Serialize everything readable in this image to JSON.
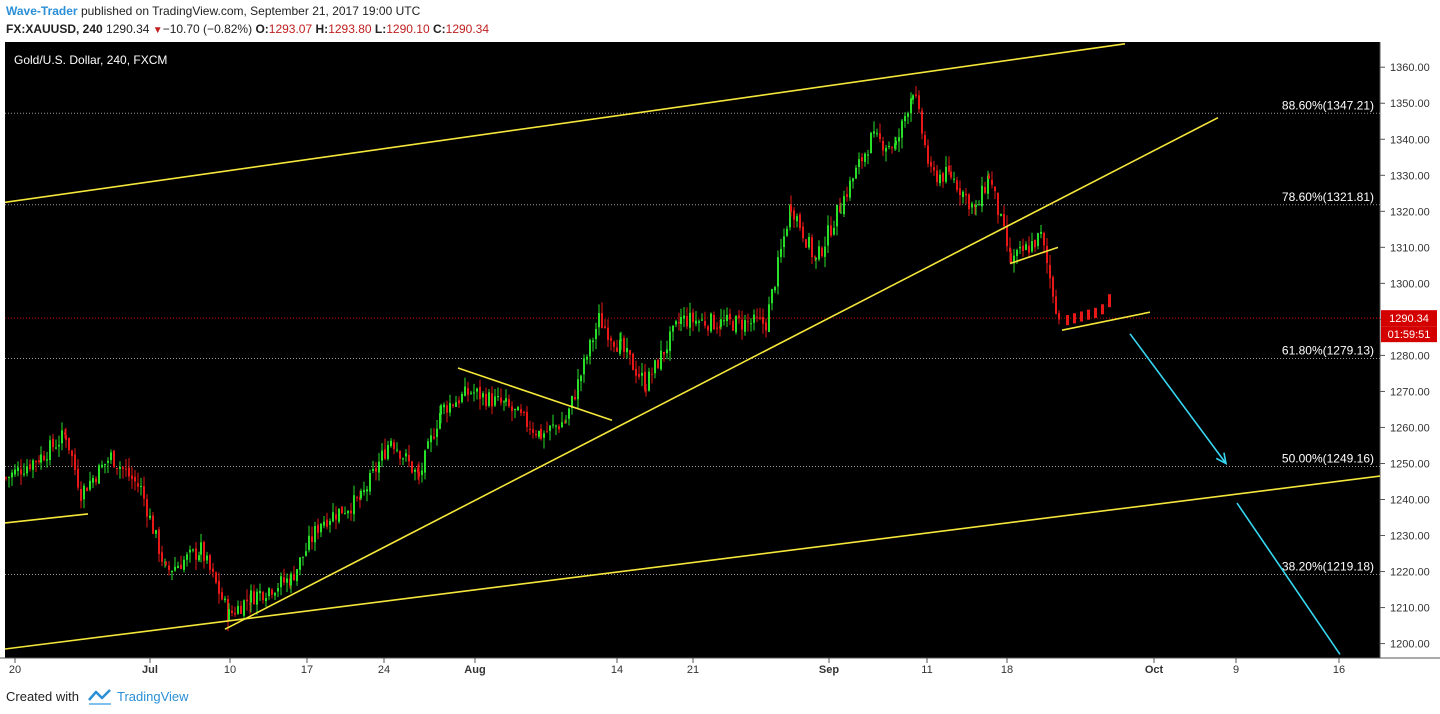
{
  "header": {
    "author": "Wave-Trader",
    "published_text": "published on TradingView.com, September 21, 2017 19:00 UTC",
    "symbol": "FX:XAUUSD, 240",
    "last": "1290.34",
    "change": "−10.70 (−0.82%)",
    "open_label": "O:",
    "open": "1293.07",
    "high_label": "H:",
    "high": "1293.80",
    "low_label": "L:",
    "low": "1290.10",
    "close_label": "C:",
    "close": "1290.34"
  },
  "chart_data": {
    "type": "candlestick",
    "title": "Gold/U.S. Dollar, 240, FXCM",
    "ylim": [
      1196,
      1367
    ],
    "y_ticks": [
      "1360.00",
      "1350.00",
      "1340.00",
      "1330.00",
      "1320.00",
      "1310.00",
      "1300.00",
      "1290.00",
      "1280.00",
      "1270.00",
      "1260.00",
      "1250.00",
      "1240.00",
      "1230.00",
      "1220.00",
      "1210.00",
      "1200.00"
    ],
    "x_ticks": [
      "20",
      "Jul",
      "10",
      "17",
      "24",
      "Aug",
      "14",
      "21",
      "Sep",
      "11",
      "18",
      "Oct",
      "9",
      "16"
    ],
    "last_price_label": "1290.34",
    "countdown_label": "01:59:51",
    "fib_levels": [
      {
        "label": "88.60%(1347.21)",
        "value": 1347.21
      },
      {
        "label": "78.60%(1321.81)",
        "value": 1321.81
      },
      {
        "label": "61.80%(1279.13)",
        "value": 1279.13
      },
      {
        "label": "50.00%(1249.16)",
        "value": 1249.16
      },
      {
        "label": "38.20%(1219.18)",
        "value": 1219.18
      }
    ],
    "anchors": [
      {
        "x": 5,
        "y": 1246
      },
      {
        "x": 40,
        "y": 1252
      },
      {
        "x": 65,
        "y": 1258
      },
      {
        "x": 80,
        "y": 1242
      },
      {
        "x": 110,
        "y": 1252
      },
      {
        "x": 140,
        "y": 1243
      },
      {
        "x": 165,
        "y": 1220
      },
      {
        "x": 200,
        "y": 1226
      },
      {
        "x": 228,
        "y": 1208
      },
      {
        "x": 250,
        "y": 1213
      },
      {
        "x": 290,
        "y": 1218
      },
      {
        "x": 320,
        "y": 1234
      },
      {
        "x": 360,
        "y": 1240
      },
      {
        "x": 390,
        "y": 1257
      },
      {
        "x": 418,
        "y": 1246
      },
      {
        "x": 440,
        "y": 1265
      },
      {
        "x": 470,
        "y": 1270
      },
      {
        "x": 505,
        "y": 1266
      },
      {
        "x": 540,
        "y": 1258
      },
      {
        "x": 565,
        "y": 1262
      },
      {
        "x": 598,
        "y": 1290
      },
      {
        "x": 620,
        "y": 1282
      },
      {
        "x": 645,
        "y": 1272
      },
      {
        "x": 680,
        "y": 1290
      },
      {
        "x": 720,
        "y": 1289
      },
      {
        "x": 765,
        "y": 1289
      },
      {
        "x": 790,
        "y": 1322
      },
      {
        "x": 815,
        "y": 1306
      },
      {
        "x": 840,
        "y": 1322
      },
      {
        "x": 870,
        "y": 1340
      },
      {
        "x": 895,
        "y": 1338
      },
      {
        "x": 912,
        "y": 1354
      },
      {
        "x": 930,
        "y": 1330
      },
      {
        "x": 950,
        "y": 1330
      },
      {
        "x": 975,
        "y": 1320
      },
      {
        "x": 988,
        "y": 1330
      },
      {
        "x": 1010,
        "y": 1306
      },
      {
        "x": 1040,
        "y": 1313
      },
      {
        "x": 1058,
        "y": 1290
      }
    ],
    "final_candles": [
      1290,
      1290.5,
      1291,
      1291.5,
      1292,
      1293,
      1295
    ],
    "trendlines": [
      {
        "from": [
          5,
          1322.5
        ],
        "to": [
          1125,
          1366.5
        ],
        "color": "#f5e73a"
      },
      {
        "from": [
          5,
          1198.5
        ],
        "to": [
          1380,
          1246.5
        ],
        "color": "#f5e73a"
      },
      {
        "from": [
          5,
          1233.5
        ],
        "to": [
          88,
          1236
        ],
        "color": "#f5e73a"
      },
      {
        "from": [
          225,
          1204
        ],
        "to": [
          1218,
          1346
        ],
        "color": "#f5e73a"
      },
      {
        "from": [
          458,
          1276.5
        ],
        "to": [
          612,
          1262
        ],
        "color": "#f5e73a"
      },
      {
        "from": [
          1010,
          1305.5
        ],
        "to": [
          1058,
          1310
        ],
        "color": "#f5e73a"
      },
      {
        "from": [
          1062,
          1287
        ],
        "to": [
          1150,
          1292
        ],
        "color": "#f5e73a"
      },
      {
        "from": [
          1130,
          1286
        ],
        "to": [
          1226,
          1250
        ],
        "color": "#37d6f0",
        "arrow": true
      },
      {
        "from": [
          1237,
          1239
        ],
        "to": [
          1340,
          1197
        ],
        "color": "#37d6f0"
      }
    ],
    "colors": {
      "up": "#28e028",
      "down": "#e81818",
      "background": "#000000",
      "fib": "#9a9a9a",
      "last_price": "#d40000"
    }
  },
  "footer": {
    "created_with": "Created with",
    "brand": "TradingView"
  }
}
